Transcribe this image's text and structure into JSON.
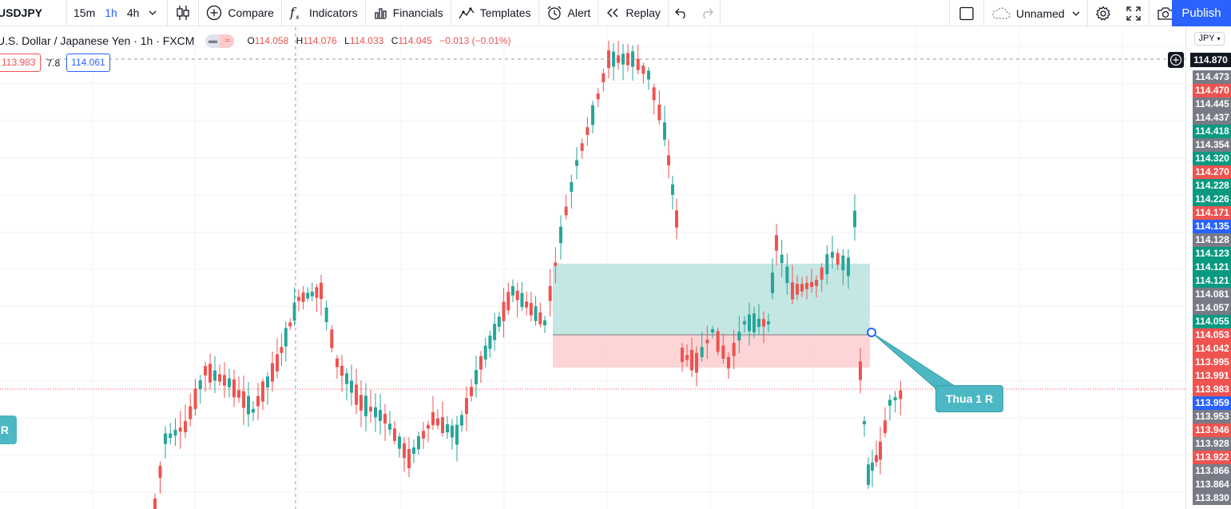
{
  "toolbar": {
    "symbol": "USDJPY",
    "intervals": [
      "15m",
      "1h",
      "4h"
    ],
    "active_interval": "1h",
    "compare_label": "Compare",
    "indicators_label": "Indicators",
    "financials_label": "Financials",
    "templates_label": "Templates",
    "alert_label": "Alert",
    "replay_label": "Replay",
    "layout_name": "Unnamed",
    "publish_label": "Publish"
  },
  "legend": {
    "title": "U.S. Dollar / Japanese Yen · 1h · FXCM",
    "open_label": "O",
    "open": "114.058",
    "high_label": "H",
    "high": "114.076",
    "low_label": "L",
    "low": "114.033",
    "close_label": "C",
    "close": "114.045",
    "change": "−0.013 (−0.01%)",
    "bid": "113.983",
    "spread": "7.8",
    "ask": "114.061"
  },
  "axis": {
    "currency": "JPY",
    "cursor_price": "114.870",
    "labels": [
      {
        "text": "114.473",
        "color": "#787b86"
      },
      {
        "text": "114.470",
        "color": "#ef5350"
      },
      {
        "text": "114.445",
        "color": "#787b86"
      },
      {
        "text": "114.437",
        "color": "#787b86"
      },
      {
        "text": "114.418",
        "color": "#089981"
      },
      {
        "text": "114.354",
        "color": "#787b86"
      },
      {
        "text": "114.320",
        "color": "#089981"
      },
      {
        "text": "114.270",
        "color": "#ef5350"
      },
      {
        "text": "114.228",
        "color": "#089981"
      },
      {
        "text": "114.226",
        "color": "#089981"
      },
      {
        "text": "114.171",
        "color": "#ef5350"
      },
      {
        "text": "114.135",
        "color": "#2962ff"
      },
      {
        "text": "114.128",
        "color": "#787b86"
      },
      {
        "text": "114.123",
        "color": "#089981"
      },
      {
        "text": "114.121",
        "color": "#089981"
      },
      {
        "text": "114.121",
        "color": "#089981"
      },
      {
        "text": "114.081",
        "color": "#787b86"
      },
      {
        "text": "114.057",
        "color": "#787b86"
      },
      {
        "text": "114.055",
        "color": "#089981"
      },
      {
        "text": "114.053",
        "color": "#ef5350"
      },
      {
        "text": "114.042",
        "color": "#ef5350"
      },
      {
        "text": "113.995",
        "color": "#ef5350"
      },
      {
        "text": "113.991",
        "color": "#ef5350"
      },
      {
        "text": "113.983",
        "color": "#ef5350"
      },
      {
        "text": "113.959",
        "color": "#2962ff"
      },
      {
        "text": "113.953",
        "color": "#787b86"
      },
      {
        "text": "113.946",
        "color": "#ef5350"
      },
      {
        "text": "113.928",
        "color": "#787b86"
      },
      {
        "text": "113.922",
        "color": "#ef5350"
      },
      {
        "text": "113.866",
        "color": "#787b86"
      },
      {
        "text": "113.864",
        "color": "#787b86"
      },
      {
        "text": "113.830",
        "color": "#787b86"
      }
    ]
  },
  "annotations": {
    "callout_main": "Thua 1 R",
    "callout_left": "R"
  },
  "colors": {
    "up": "#26a69a",
    "down": "#ef5350",
    "profit_zone": "#b2dfdb",
    "loss_zone": "#fccbcd",
    "accent": "#2962ff",
    "callout": "#4cb8c4"
  }
}
